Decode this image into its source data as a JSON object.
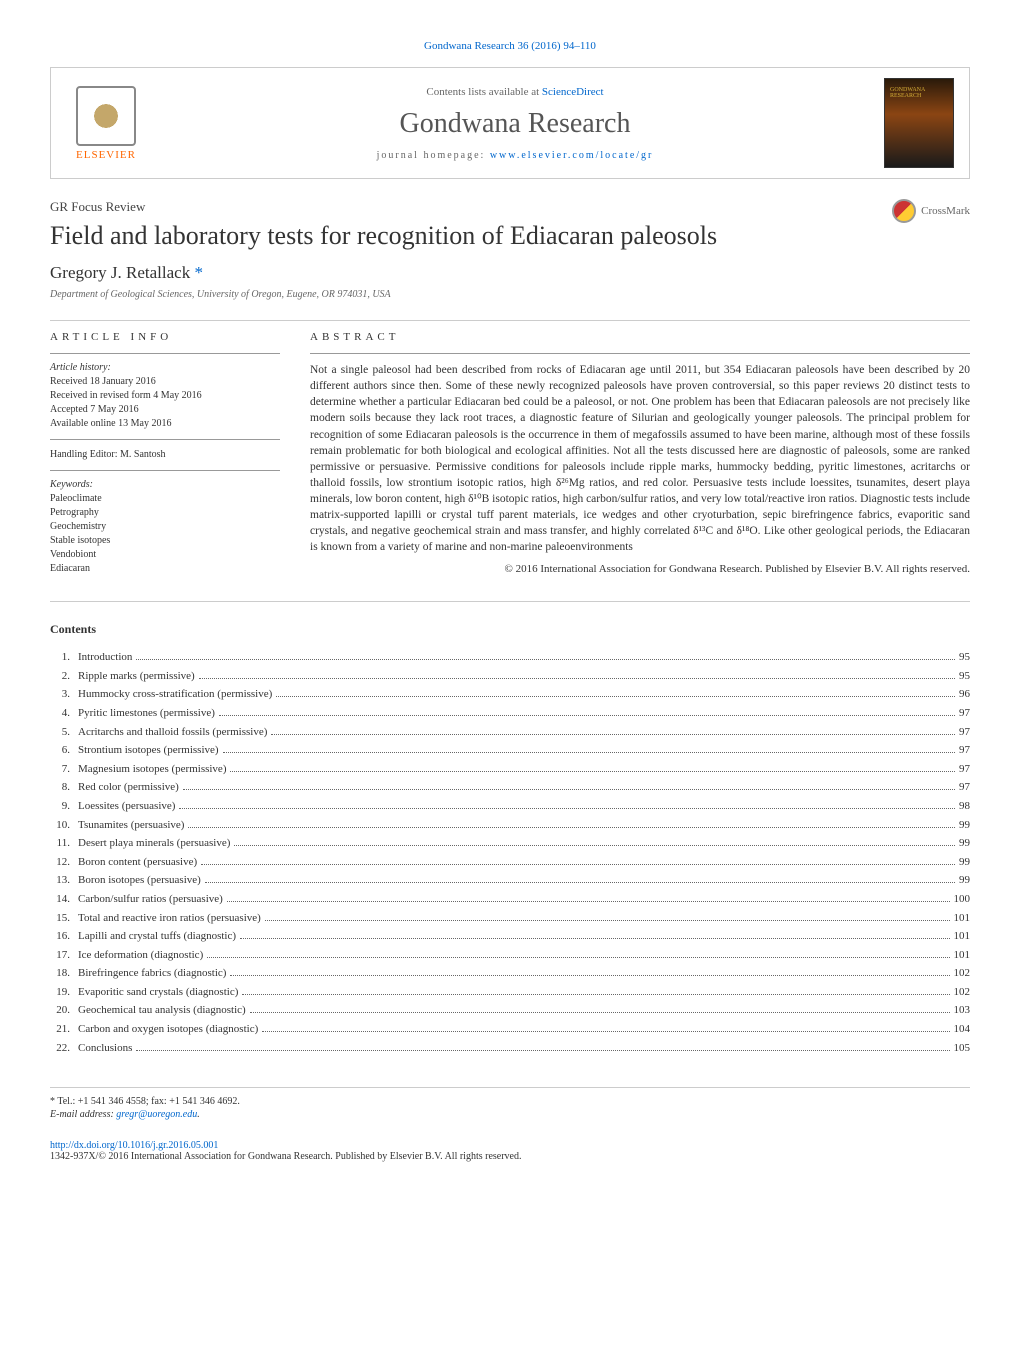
{
  "citation": "Gondwana Research 36 (2016) 94–110",
  "header": {
    "contents_prefix": "Contents lists available at ",
    "contents_link": "ScienceDirect",
    "journal_name": "Gondwana Research",
    "homepage_prefix": "journal homepage: ",
    "homepage_link": "www.elsevier.com/locate/gr",
    "elsevier_label": "ELSEVIER",
    "cover_text": "GONDWANA RESEARCH"
  },
  "article": {
    "type": "GR Focus Review",
    "title": "Field and laboratory tests for recognition of Ediacaran paleosols",
    "crossmark": "CrossMark",
    "author": "Gregory J. Retallack ",
    "asterisk": "*",
    "affiliation": "Department of Geological Sciences, University of Oregon, Eugene, OR 974031, USA"
  },
  "info": {
    "heading": "ARTICLE INFO",
    "history_label": "Article history:",
    "received": "Received 18 January 2016",
    "revised": "Received in revised form 4 May 2016",
    "accepted": "Accepted 7 May 2016",
    "online": "Available online 13 May 2016",
    "editor": "Handling Editor: M. Santosh",
    "keywords_label": "Keywords:",
    "keywords": [
      "Paleoclimate",
      "Petrography",
      "Geochemistry",
      "Stable isotopes",
      "Vendobiont",
      "Ediacaran"
    ]
  },
  "abstract": {
    "heading": "ABSTRACT",
    "text": "Not a single paleosol had been described from rocks of Ediacaran age until 2011, but 354 Ediacaran paleosols have been described by 20 different authors since then. Some of these newly recognized paleosols have proven controversial, so this paper reviews 20 distinct tests to determine whether a particular Ediacaran bed could be a paleosol, or not. One problem has been that Ediacaran paleosols are not precisely like modern soils because they lack root traces, a diagnostic feature of Silurian and geologically younger paleosols. The principal problem for recognition of some Ediacaran paleosols is the occurrence in them of megafossils assumed to have been marine, although most of these fossils remain problematic for both biological and ecological affinities. Not all the tests discussed here are diagnostic of paleosols, some are ranked permissive or persuasive. Permissive conditions for paleosols include ripple marks, hummocky bedding, pyritic limestones, acritarchs or thalloid fossils, low strontium isotopic ratios, high δ²⁶Mg ratios, and red color. Persuasive tests include loessites, tsunamites, desert playa minerals, low boron content, high δ¹⁰B isotopic ratios, high carbon/sulfur ratios, and very low total/reactive iron ratios. Diagnostic tests include matrix-supported lapilli or crystal tuff parent materials, ice wedges and other cryoturbation, sepic birefringence fabrics, evaporitic sand crystals, and negative geochemical strain and mass transfer, and highly correlated δ¹³C and δ¹⁸O. Like other geological periods, the Ediacaran is known from a variety of marine and non-marine paleoenvironments",
    "copyright": "© 2016 International Association for Gondwana Research. Published by Elsevier B.V. All rights reserved."
  },
  "contents": {
    "heading": "Contents",
    "items": [
      {
        "num": "1.",
        "title": "Introduction",
        "page": "95"
      },
      {
        "num": "2.",
        "title": "Ripple marks (permissive)",
        "page": "95"
      },
      {
        "num": "3.",
        "title": "Hummocky cross-stratification (permissive)",
        "page": "96"
      },
      {
        "num": "4.",
        "title": "Pyritic limestones (permissive)",
        "page": "97"
      },
      {
        "num": "5.",
        "title": "Acritarchs and thalloid fossils (permissive)",
        "page": "97"
      },
      {
        "num": "6.",
        "title": "Strontium isotopes (permissive)",
        "page": "97"
      },
      {
        "num": "7.",
        "title": "Magnesium isotopes (permissive)",
        "page": "97"
      },
      {
        "num": "8.",
        "title": "Red color (permissive)",
        "page": "97"
      },
      {
        "num": "9.",
        "title": "Loessites (persuasive)",
        "page": "98"
      },
      {
        "num": "10.",
        "title": "Tsunamites (persuasive)",
        "page": "99"
      },
      {
        "num": "11.",
        "title": "Desert playa minerals (persuasive)",
        "page": "99"
      },
      {
        "num": "12.",
        "title": "Boron content (persuasive)",
        "page": "99"
      },
      {
        "num": "13.",
        "title": "Boron isotopes (persuasive)",
        "page": "99"
      },
      {
        "num": "14.",
        "title": "Carbon/sulfur ratios (persuasive)",
        "page": "100"
      },
      {
        "num": "15.",
        "title": "Total and reactive iron ratios (persuasive)",
        "page": "101"
      },
      {
        "num": "16.",
        "title": "Lapilli and crystal tuffs (diagnostic)",
        "page": "101"
      },
      {
        "num": "17.",
        "title": "Ice deformation (diagnostic)",
        "page": "101"
      },
      {
        "num": "18.",
        "title": "Birefringence fabrics (diagnostic)",
        "page": "102"
      },
      {
        "num": "19.",
        "title": "Evaporitic sand crystals (diagnostic)",
        "page": "102"
      },
      {
        "num": "20.",
        "title": "Geochemical tau analysis (diagnostic)",
        "page": "103"
      },
      {
        "num": "21.",
        "title": "Carbon and oxygen isotopes (diagnostic)",
        "page": "104"
      },
      {
        "num": "22.",
        "title": "Conclusions",
        "page": "105"
      }
    ]
  },
  "footer": {
    "contact": "* Tel.: +1 541 346 4558; fax: +1 541 346 4692.",
    "email_label": "E-mail address: ",
    "email": "gregr@uoregon.edu",
    "doi": "http://dx.doi.org/10.1016/j.gr.2016.05.001",
    "bottom_copyright": "1342-937X/© 2016 International Association for Gondwana Research. Published by Elsevier B.V. All rights reserved."
  },
  "colors": {
    "link": "#0066cc",
    "text": "#333333",
    "border": "#cccccc",
    "elsevier_orange": "#ff6600"
  }
}
